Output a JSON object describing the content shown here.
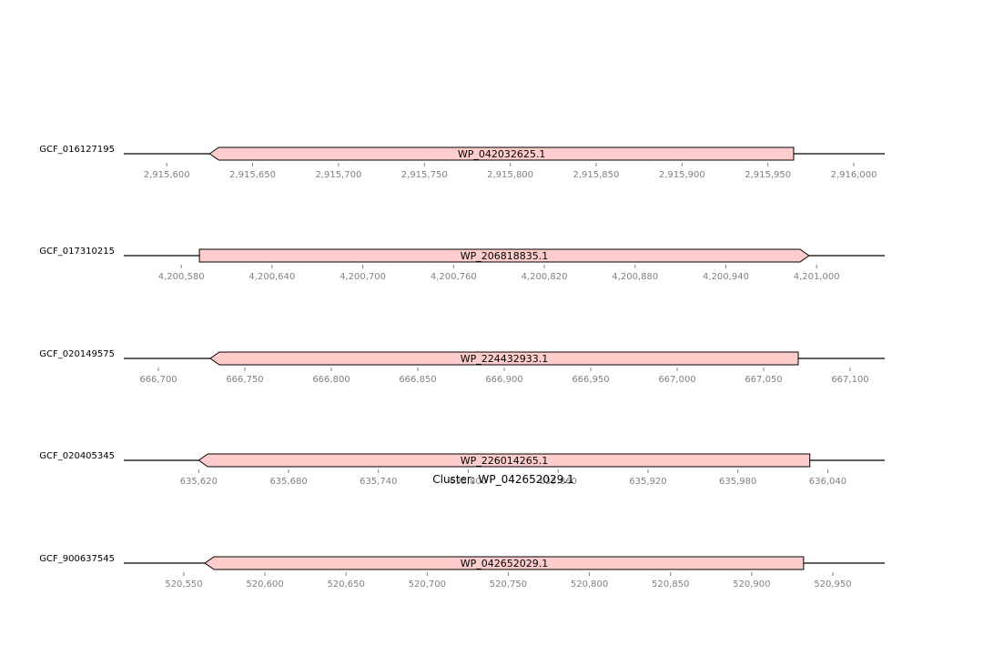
{
  "figure": {
    "cluster_title": "Cluster: WP_042652029.1",
    "colors": {
      "gene_fill": "#ffcccc",
      "gene_stroke": "#000000",
      "backbone": "#000000",
      "tick": "#808080"
    },
    "tracks": [
      {
        "genome": "GCF_016127195",
        "range": [
          2915575,
          2916018
        ],
        "gene": {
          "id": "WP_042032625.1",
          "start": 2915625,
          "end": 2915965,
          "strand": "-"
        },
        "ticks": [
          {
            "value": 2915600,
            "label": "2,915,600"
          },
          {
            "value": 2915650,
            "label": "2,915,650"
          },
          {
            "value": 2915700,
            "label": "2,915,700"
          },
          {
            "value": 2915750,
            "label": "2,915,750"
          },
          {
            "value": 2915800,
            "label": "2,915,800"
          },
          {
            "value": 2915850,
            "label": "2,915,850"
          },
          {
            "value": 2915900,
            "label": "2,915,900"
          },
          {
            "value": 2915950,
            "label": "2,915,950"
          },
          {
            "value": 2916000,
            "label": "2,916,000"
          }
        ]
      },
      {
        "genome": "GCF_017310215",
        "range": [
          4200542,
          4201045
        ],
        "gene": {
          "id": "WP_206818835.1",
          "start": 4200592,
          "end": 4200995,
          "strand": "+"
        },
        "ticks": [
          {
            "value": 4200580,
            "label": "4,200,580"
          },
          {
            "value": 4200640,
            "label": "4,200,640"
          },
          {
            "value": 4200700,
            "label": "4,200,700"
          },
          {
            "value": 4200760,
            "label": "4,200,760"
          },
          {
            "value": 4200820,
            "label": "4,200,820"
          },
          {
            "value": 4200880,
            "label": "4,200,880"
          },
          {
            "value": 4200940,
            "label": "4,200,940"
          },
          {
            "value": 4201000,
            "label": "4,201,000"
          }
        ]
      },
      {
        "genome": "GCF_020149575",
        "range": [
          666680,
          667120
        ],
        "gene": {
          "id": "WP_224432933.1",
          "start": 666730,
          "end": 667070,
          "strand": "-"
        },
        "ticks": [
          {
            "value": 666700,
            "label": "666,700"
          },
          {
            "value": 666750,
            "label": "666,750"
          },
          {
            "value": 666800,
            "label": "666,800"
          },
          {
            "value": 666850,
            "label": "666,850"
          },
          {
            "value": 666900,
            "label": "666,900"
          },
          {
            "value": 666950,
            "label": "666,950"
          },
          {
            "value": 667000,
            "label": "667,000"
          },
          {
            "value": 667050,
            "label": "667,050"
          },
          {
            "value": 667100,
            "label": "667,100"
          }
        ]
      },
      {
        "genome": "GCF_020405345",
        "range": [
          635570,
          636078
        ],
        "gene": {
          "id": "WP_226014265.1",
          "start": 635620,
          "end": 636028,
          "strand": "-"
        },
        "ticks": [
          {
            "value": 635620,
            "label": "635,620"
          },
          {
            "value": 635680,
            "label": "635,680"
          },
          {
            "value": 635740,
            "label": "635,740"
          },
          {
            "value": 635800,
            "label": "635,800"
          },
          {
            "value": 635860,
            "label": "635,860"
          },
          {
            "value": 635920,
            "label": "635,920"
          },
          {
            "value": 635980,
            "label": "635,980"
          },
          {
            "value": 636040,
            "label": "636,040"
          }
        ]
      },
      {
        "genome": "GCF_900637545",
        "range": [
          520513,
          520982
        ],
        "gene": {
          "id": "WP_042652029.1",
          "start": 520563,
          "end": 520932,
          "strand": "-"
        },
        "ticks": [
          {
            "value": 520550,
            "label": "520,550"
          },
          {
            "value": 520600,
            "label": "520,600"
          },
          {
            "value": 520650,
            "label": "520,650"
          },
          {
            "value": 520700,
            "label": "520,700"
          },
          {
            "value": 520750,
            "label": "520,750"
          },
          {
            "value": 520800,
            "label": "520,800"
          },
          {
            "value": 520850,
            "label": "520,850"
          },
          {
            "value": 520900,
            "label": "520,900"
          },
          {
            "value": 520950,
            "label": "520,950"
          }
        ]
      }
    ]
  }
}
